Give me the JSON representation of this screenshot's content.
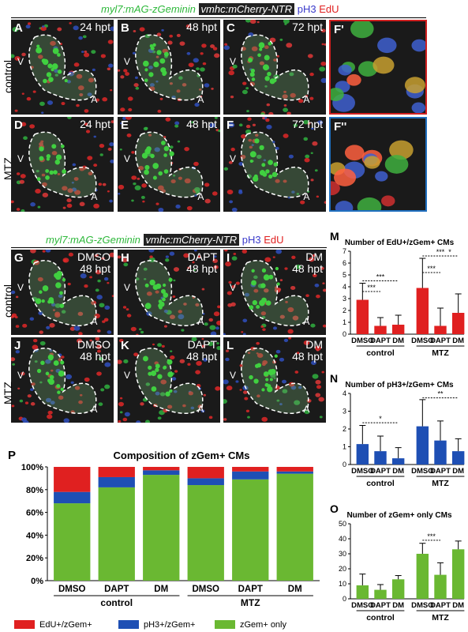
{
  "header_top": {
    "g": "myl7:mAG-zGeminin",
    "box": "vmhc:mCherry-NTR",
    "b": "pH3",
    "r": "EdU"
  },
  "header_mid": {
    "g": "myl7:mAG-zGeminin",
    "box": "vmhc:mCherry-NTR",
    "b": "pH3",
    "r": "EdU"
  },
  "rows": {
    "control": "control",
    "mtz": "MTZ"
  },
  "panels_top": [
    {
      "id": "A",
      "time": "24 hpt"
    },
    {
      "id": "B",
      "time": "48 hpt"
    },
    {
      "id": "C",
      "time": "72 hpt"
    },
    {
      "id": "D",
      "time": "24 hpt"
    },
    {
      "id": "E",
      "time": "48 hpt"
    },
    {
      "id": "F",
      "time": "72 hpt"
    }
  ],
  "panels_zoom": [
    {
      "id": "F'"
    },
    {
      "id": "F''"
    }
  ],
  "panels_mid": [
    {
      "id": "G",
      "t1": "DMSO",
      "t2": "48 hpt"
    },
    {
      "id": "H",
      "t1": "DAPT",
      "t2": "48 hpt"
    },
    {
      "id": "I",
      "t1": "DM",
      "t2": "48 hpt"
    },
    {
      "id": "J",
      "t1": "DMSO",
      "t2": "48 hpt"
    },
    {
      "id": "K",
      "t1": "DAPT",
      "t2": "48 hpt"
    },
    {
      "id": "L",
      "t1": "DM",
      "t2": "48 hpt"
    }
  ],
  "chambers": {
    "v": "V",
    "a": "A"
  },
  "chart_data": [
    {
      "panel": "M",
      "type": "bar",
      "title": "Number of EdU+/zGem+ CMs",
      "categories": [
        "DMSO",
        "DAPT",
        "DM",
        "DMSO",
        "DAPT",
        "DM"
      ],
      "groups": [
        "control",
        "MTZ"
      ],
      "values": [
        2.9,
        0.7,
        0.8,
        3.9,
        0.7,
        1.8
      ],
      "errors": [
        1.4,
        0.7,
        0.8,
        2.5,
        1.5,
        1.6
      ],
      "ylim": [
        0,
        7
      ],
      "yticks": [
        "0",
        "1",
        "2",
        "3",
        "4",
        "5",
        "6",
        "7"
      ],
      "sig": [
        "***",
        "***",
        "***",
        "***",
        "*"
      ],
      "color": "#e02020"
    },
    {
      "panel": "N",
      "type": "bar",
      "title": "Number of pH3+/zGem+ CMs",
      "categories": [
        "DMSO",
        "DAPT",
        "DM",
        "DMSO",
        "DAPT",
        "DM"
      ],
      "groups": [
        "control",
        "MTZ"
      ],
      "values": [
        1.15,
        0.75,
        0.35,
        2.15,
        1.35,
        0.75
      ],
      "errors": [
        1.05,
        0.85,
        0.6,
        1.5,
        1.1,
        0.7
      ],
      "ylim": [
        0,
        4
      ],
      "yticks": [
        "0",
        "1",
        "2",
        "3",
        "4"
      ],
      "sig": [
        "*",
        "**"
      ],
      "color": "#1e4fb4"
    },
    {
      "panel": "O",
      "type": "bar",
      "title": "Number of zGem+ only CMs",
      "categories": [
        "DMSO",
        "DAPT",
        "DM",
        "DMSO",
        "DAPT",
        "DM"
      ],
      "groups": [
        "control",
        "MTZ"
      ],
      "values": [
        9,
        6,
        13,
        30,
        16,
        33
      ],
      "errors": [
        7.5,
        3.5,
        2.5,
        7,
        8,
        5.5
      ],
      "ylim": [
        0,
        50
      ],
      "yticks": [
        "0",
        "10",
        "20",
        "30",
        "40",
        "50"
      ],
      "sig": [
        "***"
      ],
      "color": "#6ab832"
    },
    {
      "panel": "P",
      "type": "stacked-bar",
      "title": "Composition of zGem+ CMs",
      "categories": [
        "DMSO",
        "DAPT",
        "DM",
        "DMSO",
        "DAPT",
        "DM"
      ],
      "groups": [
        "control",
        "MTZ"
      ],
      "yticks": [
        "0%",
        "20%",
        "40%",
        "60%",
        "80%",
        "100%"
      ],
      "series": [
        {
          "name": "zGem+ only",
          "color": "#6ab832",
          "values": [
            68,
            82,
            93,
            84,
            89,
            94
          ]
        },
        {
          "name": "pH3+/zGem+",
          "color": "#1e4fb4",
          "values": [
            10,
            9,
            4,
            6,
            7,
            2
          ]
        },
        {
          "name": "EdU+/zGem+",
          "color": "#e02020",
          "values": [
            22,
            9,
            3,
            10,
            4,
            4
          ]
        }
      ]
    }
  ],
  "legend": [
    {
      "label": "EdU+/zGem+",
      "color": "#e02020"
    },
    {
      "label": "pH3+/zGem+",
      "color": "#1e4fb4"
    },
    {
      "label": "zGem+ only",
      "color": "#6ab832"
    }
  ]
}
